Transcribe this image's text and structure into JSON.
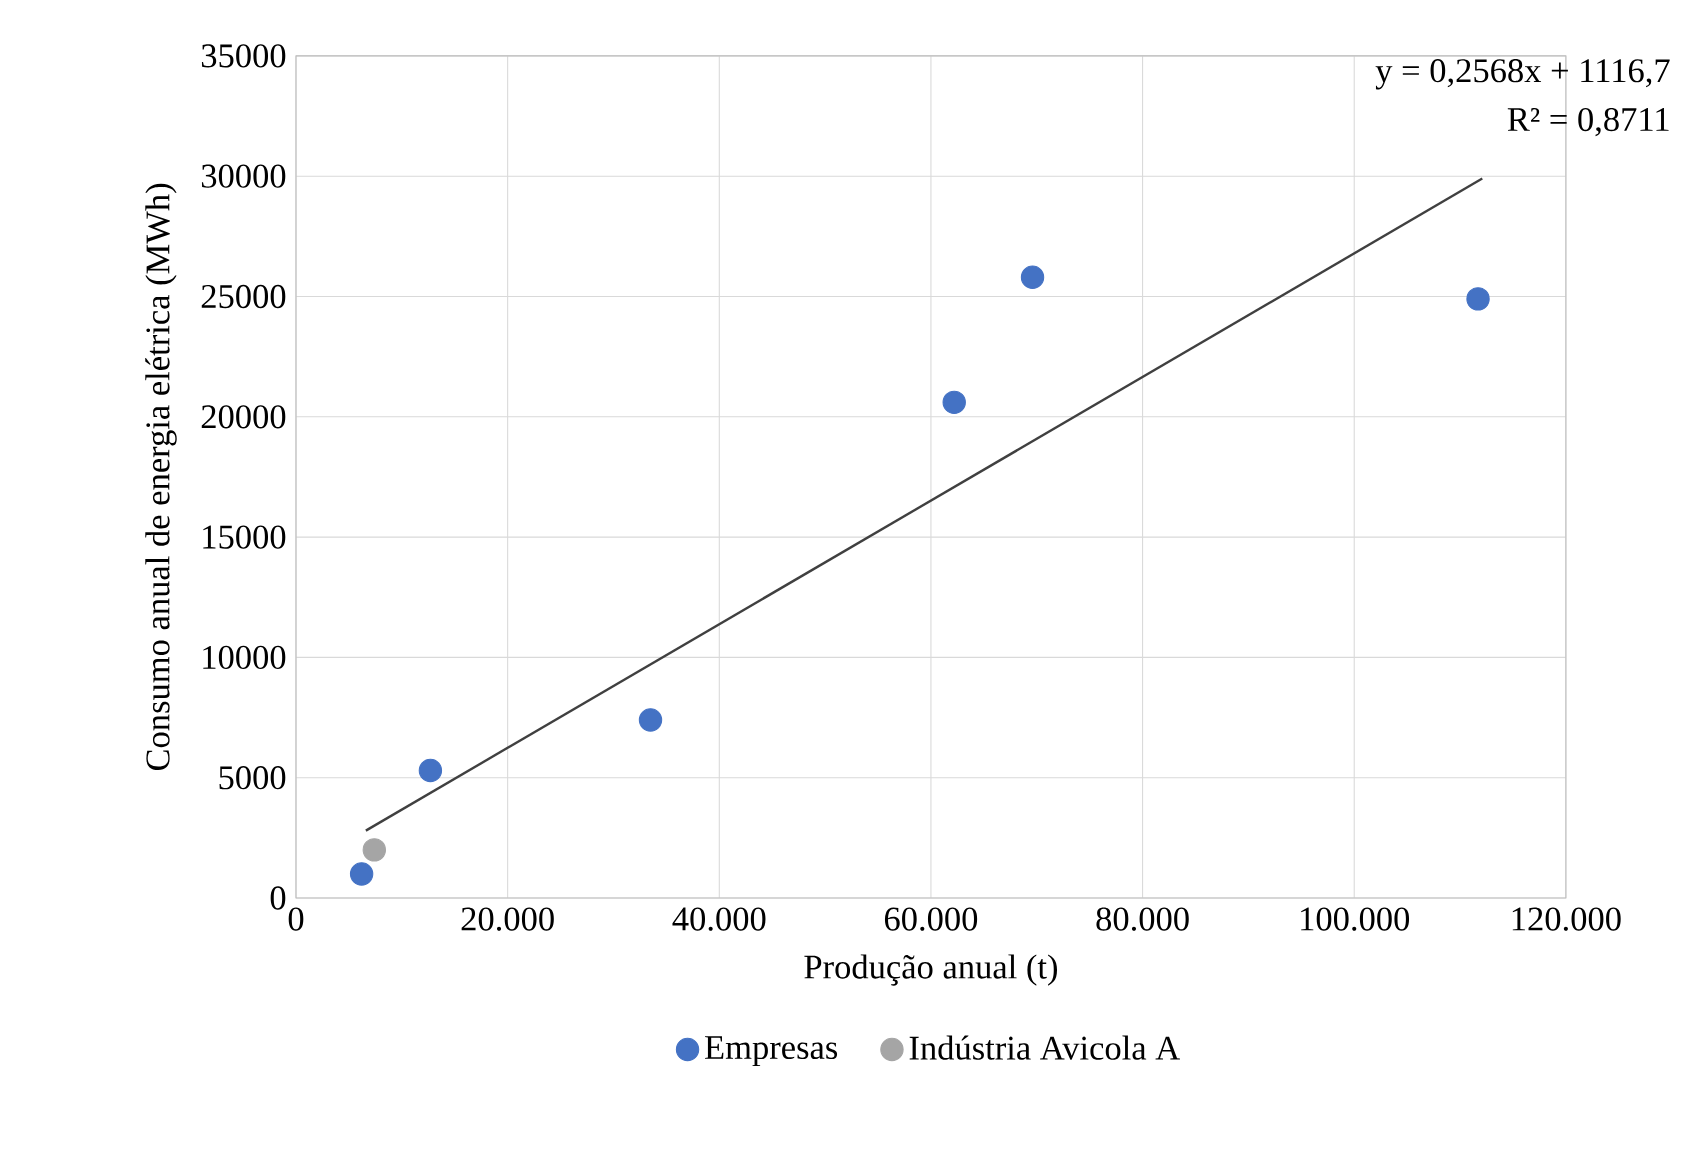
{
  "chart_data": {
    "type": "scatter",
    "xlabel": "Produção anual  (t)",
    "ylabel": "Consumo  anual  de energia  elétrica  (MWh)",
    "annotations": [
      "y = 0,2568x + 1116,7",
      "R² = 0,8711"
    ],
    "series": [
      {
        "name": "Empresas",
        "color": "#4472c4",
        "x": [
          6200,
          12700,
          33500,
          62200,
          69600,
          111700
        ],
        "values": [
          1000,
          5300,
          7400,
          20600,
          25800,
          24900
        ]
      },
      {
        "name": "Indústria Avicola A",
        "color": "#a5a5a5",
        "x": [
          7400
        ],
        "values": [
          2000
        ]
      },
      {
        "type": "line",
        "marker": "none",
        "color": "#404040",
        "x": [
          6600,
          112100
        ],
        "values": [
          2800,
          29900
        ]
      }
    ],
    "xlim": [
      0,
      120000
    ],
    "ylim": [
      0,
      35000
    ],
    "xticks": [
      0,
      {
        "value": 20000,
        "label": "20.000"
      },
      {
        "value": 40000,
        "label": "40.000"
      },
      {
        "value": 60000,
        "label": "60.000"
      },
      {
        "value": 80000,
        "label": "80.000"
      },
      {
        "value": 100000,
        "label": "100.000"
      },
      {
        "value": 120000,
        "label": "120.000"
      }
    ],
    "yticks": [
      0,
      5000,
      10000,
      15000,
      20000,
      25000,
      30000,
      35000
    ],
    "grid": true,
    "legend": "bottom",
    "marker": "circle"
  }
}
